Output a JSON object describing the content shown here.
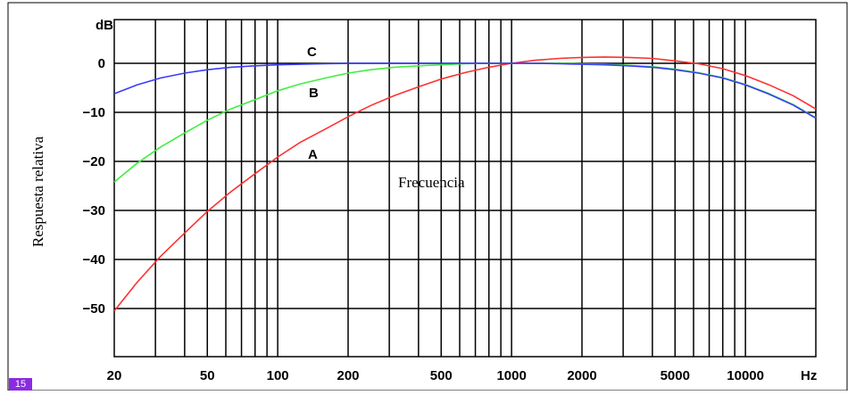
{
  "chart_data": {
    "type": "line",
    "xlabel": "Frecuencia",
    "ylabel": "Respuesta relativa",
    "yunit": "dB",
    "xunit": "Hz",
    "xscale": "log",
    "xlim": [
      20,
      20000
    ],
    "ylim": [
      -60,
      5
    ],
    "grid": true,
    "x_ticks": [
      20,
      50,
      100,
      200,
      500,
      1000,
      2000,
      5000,
      10000
    ],
    "x_tick_labels": [
      "20",
      "50",
      "100",
      "200",
      "500",
      "1000",
      "2000",
      "5000",
      "10000"
    ],
    "y_ticks": [
      0,
      -10,
      -20,
      -30,
      -40,
      -50
    ],
    "y_tick_labels": [
      "0",
      "−10",
      "−20",
      "−30",
      "−40",
      "−50"
    ],
    "series": [
      {
        "name": "A",
        "color": "#ff3030",
        "x": [
          20,
          25,
          31.5,
          40,
          50,
          63,
          80,
          100,
          125,
          160,
          200,
          250,
          315,
          400,
          500,
          630,
          800,
          1000,
          1250,
          1600,
          2000,
          2500,
          3150,
          4000,
          5000,
          6300,
          8000,
          10000,
          12500,
          16000,
          20000
        ],
        "y": [
          -50.5,
          -44.7,
          -39.4,
          -34.6,
          -30.2,
          -26.2,
          -22.5,
          -19.1,
          -16.1,
          -13.4,
          -10.9,
          -8.6,
          -6.6,
          -4.8,
          -3.2,
          -1.9,
          -0.8,
          0,
          0.6,
          1.0,
          1.2,
          1.3,
          1.2,
          1.0,
          0.5,
          -0.1,
          -1.1,
          -2.5,
          -4.3,
          -6.6,
          -9.3
        ]
      },
      {
        "name": "B",
        "color": "#40ee40",
        "x": [
          20,
          25,
          31.5,
          40,
          50,
          63,
          80,
          100,
          125,
          160,
          200,
          250,
          315,
          400,
          500,
          630,
          800,
          1000,
          1250,
          1600,
          2000,
          2500,
          3150,
          4000,
          5000,
          6300,
          8000,
          10000,
          12500,
          16000,
          20000
        ],
        "y": [
          -24.2,
          -20.4,
          -17.1,
          -14.2,
          -11.6,
          -9.3,
          -7.4,
          -5.6,
          -4.2,
          -3.0,
          -2.0,
          -1.3,
          -0.8,
          -0.5,
          -0.3,
          -0.1,
          0,
          0,
          0,
          0,
          -0.1,
          -0.2,
          -0.4,
          -0.7,
          -1.2,
          -1.9,
          -2.9,
          -4.3,
          -6.1,
          -8.4,
          -11.1
        ]
      },
      {
        "name": "C",
        "color": "#3a3aff",
        "x": [
          20,
          25,
          31.5,
          40,
          50,
          63,
          80,
          100,
          125,
          160,
          200,
          250,
          315,
          400,
          500,
          630,
          800,
          1000,
          1250,
          1600,
          2000,
          2500,
          3150,
          4000,
          5000,
          6300,
          8000,
          10000,
          12500,
          16000,
          20000
        ],
        "y": [
          -6.2,
          -4.4,
          -3.0,
          -2.0,
          -1.3,
          -0.8,
          -0.5,
          -0.3,
          -0.2,
          -0.1,
          0,
          0,
          0,
          0,
          0,
          0,
          0,
          0,
          0,
          -0.1,
          -0.2,
          -0.3,
          -0.5,
          -0.8,
          -1.3,
          -2.0,
          -3.0,
          -4.4,
          -6.2,
          -8.5,
          -11.2
        ]
      }
    ]
  },
  "page_number": "15"
}
